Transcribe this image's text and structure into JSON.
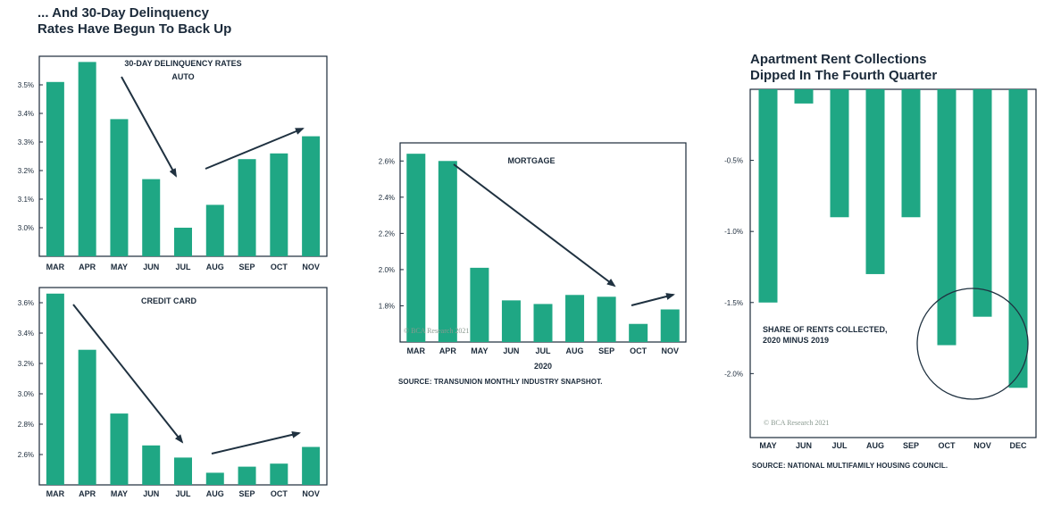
{
  "headings": {
    "left": "... And 30-Day Delinquency\nRates Have Begun To Back Up",
    "right": "Apartment Rent Collections\nDipped In The Fourth Quarter"
  },
  "sources": {
    "mortgage": "SOURCE: TRANSUNION MONTHLY INDUSTRY SNAPSHOT.",
    "rent": "SOURCE: NATIONAL MULTIFAMILY HOUSING COUNCIL."
  },
  "colors": {
    "bar": "#1fa784",
    "frame": "#1b2a3a",
    "arrow": "#1f3140"
  },
  "chart_data": [
    {
      "id": "auto",
      "type": "bar",
      "title": "30-DAY DELINQUENCY RATES",
      "subtitle": "AUTO",
      "categories": [
        "MAR",
        "APR",
        "MAY",
        "JUN",
        "JUL",
        "AUG",
        "SEP",
        "OCT",
        "NOV"
      ],
      "values": [
        3.51,
        3.58,
        3.38,
        3.17,
        3.0,
        3.08,
        3.24,
        3.26,
        3.32
      ],
      "yticks": [
        3.0,
        3.1,
        3.2,
        3.3,
        3.4,
        3.5
      ],
      "ytick_labels": [
        "3.0%",
        "3.1%",
        "3.2%",
        "3.3%",
        "3.4%",
        "3.5%"
      ],
      "ylim": [
        2.9,
        3.6
      ],
      "grid": false
    },
    {
      "id": "credit",
      "type": "bar",
      "title": "CREDIT CARD",
      "categories": [
        "MAR",
        "APR",
        "MAY",
        "JUN",
        "JUL",
        "AUG",
        "SEP",
        "OCT",
        "NOV"
      ],
      "values": [
        3.66,
        3.29,
        2.87,
        2.66,
        2.58,
        2.48,
        2.52,
        2.54,
        2.65
      ],
      "yticks": [
        2.6,
        2.8,
        3.0,
        3.2,
        3.4,
        3.6
      ],
      "ytick_labels": [
        "2.6%",
        "2.8%",
        "3.0%",
        "3.2%",
        "3.4%",
        "3.6%"
      ],
      "ylim": [
        2.4,
        3.7
      ],
      "grid": false
    },
    {
      "id": "mortgage",
      "type": "bar",
      "title": "MORTGAGE",
      "xlabel": "2020",
      "categories": [
        "MAR",
        "APR",
        "MAY",
        "JUN",
        "JUL",
        "AUG",
        "SEP",
        "OCT",
        "NOV"
      ],
      "values": [
        2.64,
        2.6,
        2.01,
        1.83,
        1.81,
        1.86,
        1.85,
        1.7,
        1.78
      ],
      "yticks": [
        1.8,
        2.0,
        2.2,
        2.4,
        2.6
      ],
      "ytick_labels": [
        "1.8%",
        "2.0%",
        "2.2%",
        "2.4%",
        "2.6%"
      ],
      "ylim": [
        1.6,
        2.7
      ],
      "grid": false,
      "watermark": "© BCA Research 2021"
    },
    {
      "id": "rent",
      "type": "bar",
      "categories": [
        "MAY",
        "JUN",
        "JUL",
        "AUG",
        "SEP",
        "OCT",
        "NOV",
        "DEC"
      ],
      "values": [
        -1.5,
        -0.1,
        -0.9,
        -1.3,
        -0.9,
        -1.8,
        -1.6,
        -2.1
      ],
      "yticks": [
        -0.5,
        -1.0,
        -1.5,
        -2.0
      ],
      "ytick_labels": [
        "-0.5%",
        "-1.0%",
        "-1.5%",
        "-2.0%"
      ],
      "ylim": [
        -2.45,
        0.0
      ],
      "grid": false,
      "annotation": "SHARE OF RENTS COLLECTED,\n2020 MINUS 2019",
      "watermark": "© BCA Research 2021"
    }
  ]
}
